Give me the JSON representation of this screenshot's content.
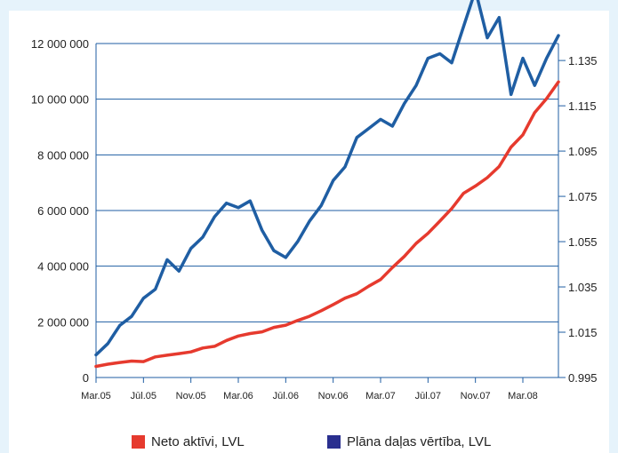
{
  "chart_data": {
    "type": "line",
    "x": [
      "2005-03",
      "2005-04",
      "2005-05",
      "2005-06",
      "2005-07",
      "2005-08",
      "2005-09",
      "2005-10",
      "2005-11",
      "2005-12",
      "2006-01",
      "2006-02",
      "2006-03",
      "2006-04",
      "2006-05",
      "2006-06",
      "2006-07",
      "2006-08",
      "2006-09",
      "2006-10",
      "2006-11",
      "2006-12",
      "2007-01",
      "2007-02",
      "2007-03",
      "2007-04",
      "2007-05",
      "2007-06",
      "2007-07",
      "2007-08",
      "2007-09",
      "2007-10",
      "2007-11",
      "2007-12",
      "2008-01",
      "2008-02",
      "2008-03",
      "2008-04",
      "2008-05",
      "2008-06"
    ],
    "x_tick_labels": [
      "Mar.05",
      "Jūl.05",
      "Nov.05",
      "Mar.06",
      "Jūl.06",
      "Nov.06",
      "Mar.07",
      "Jūl.07",
      "Nov.07",
      "Mar.08"
    ],
    "y_left_ticks": [
      "0",
      "2 000 000",
      "4 000 000",
      "6 000 000",
      "8 000 000",
      "10 000 000",
      "12 000 000"
    ],
    "y_left_range": [
      0,
      12000000
    ],
    "y_right_ticks": [
      "0.995",
      "1.015",
      "1.035",
      "1.055",
      "1.075",
      "1.095",
      "1.115",
      "1.135"
    ],
    "y_right_range": [
      0.995,
      1.1425
    ],
    "grid": true,
    "legend_position": "bottom",
    "series": [
      {
        "name": "Neto aktīvi, LVL",
        "axis": "left",
        "color": "#e63a2e",
        "values": [
          400000,
          480000,
          540000,
          590000,
          570000,
          740000,
          800000,
          860000,
          920000,
          1060000,
          1120000,
          1330000,
          1490000,
          1580000,
          1640000,
          1800000,
          1880000,
          2050000,
          2200000,
          2400000,
          2620000,
          2850000,
          3010000,
          3280000,
          3520000,
          3950000,
          4350000,
          4820000,
          5180000,
          5620000,
          6070000,
          6620000,
          6880000,
          7180000,
          7580000,
          8280000,
          8720000,
          9520000,
          10020000,
          10620000
        ]
      },
      {
        "name": "Plāna daļas vērtība, LVL",
        "axis": "right",
        "color": "#1f5ea3",
        "values": [
          1.005,
          1.01,
          1.018,
          1.022,
          1.03,
          1.034,
          1.047,
          1.042,
          1.052,
          1.057,
          1.066,
          1.072,
          1.07,
          1.073,
          1.06,
          1.051,
          1.048,
          1.055,
          1.064,
          1.071,
          1.082,
          1.088,
          1.101,
          1.105,
          1.109,
          1.106,
          1.116,
          1.124,
          1.136,
          1.138,
          1.134,
          1.15,
          1.166,
          1.145,
          1.154,
          1.12,
          1.136,
          1.124,
          1.136,
          1.146
        ]
      }
    ]
  },
  "legend": {
    "series1": "Neto aktīvi, LVL",
    "series2": "Plāna daļas vērtība, LVL"
  }
}
